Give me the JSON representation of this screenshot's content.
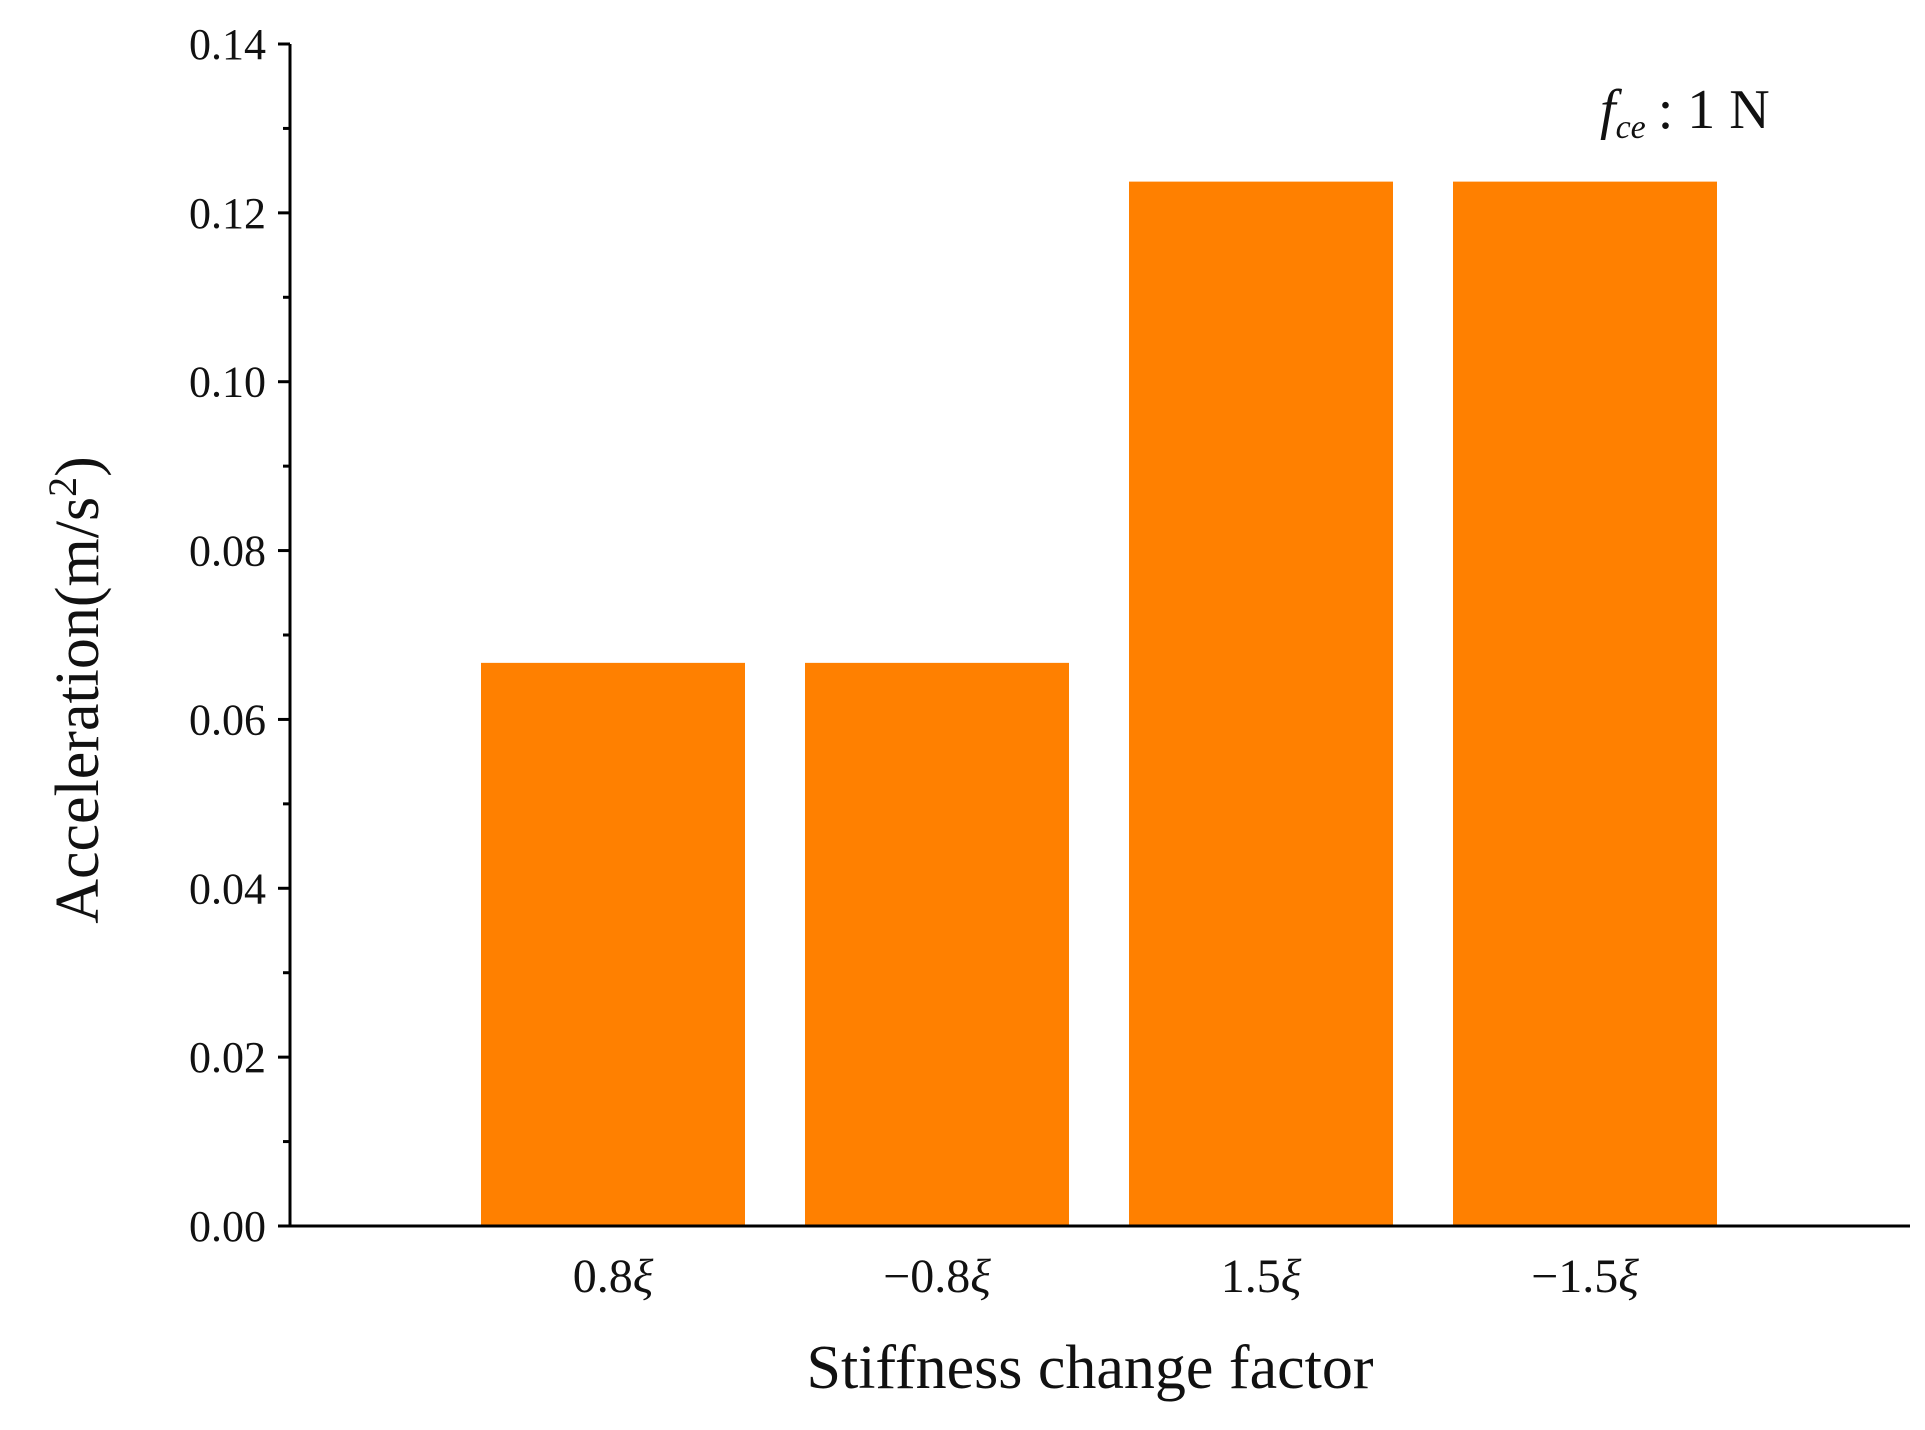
{
  "chart_data": {
    "type": "bar",
    "categories": [
      "0.8ξ",
      "−0.8ξ",
      "1.5ξ",
      "−1.5ξ"
    ],
    "values": [
      0.0667,
      0.0667,
      0.1237,
      0.1237
    ],
    "xlabel": "Stiffness change factor",
    "ylabel": "Acceleration(m/s²)",
    "ylim": [
      0,
      0.14
    ],
    "yticks": [
      "0.00",
      "0.02",
      "0.04",
      "0.06",
      "0.08",
      "0.10",
      "0.12",
      "0.14"
    ],
    "ytick_values": [
      0,
      0.02,
      0.04,
      0.06,
      0.08,
      0.1,
      0.12,
      0.14
    ],
    "grid": false,
    "bar_color": "#FF8000",
    "annotation": {
      "symbol": "f",
      "subscript": "ce",
      "text": ": 1 N"
    }
  }
}
